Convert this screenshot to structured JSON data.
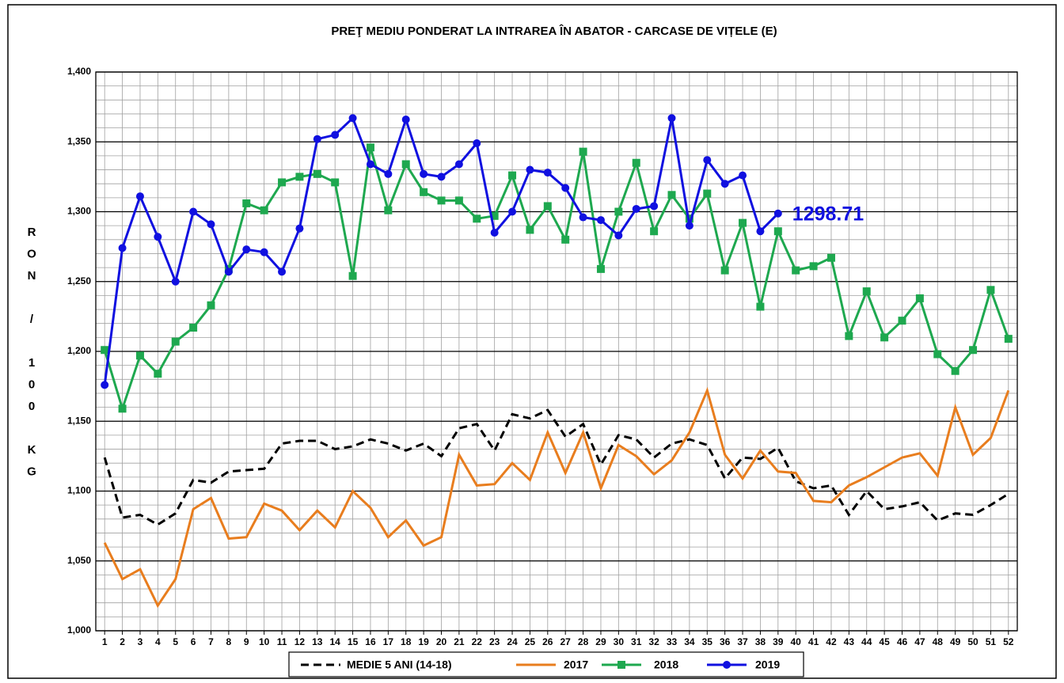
{
  "chart_data": {
    "type": "line",
    "title": "PREŢ MEDIU PONDERAT LA INTRAREA ÎN ABATOR - CARCASE DE VIȚELE (E)",
    "ylabel": "RON / 100 KG",
    "categories": [
      1,
      2,
      3,
      4,
      5,
      6,
      7,
      8,
      9,
      10,
      11,
      12,
      13,
      14,
      15,
      16,
      17,
      18,
      19,
      20,
      21,
      22,
      23,
      24,
      25,
      26,
      27,
      28,
      29,
      30,
      31,
      32,
      33,
      34,
      35,
      36,
      37,
      38,
      39,
      40,
      41,
      42,
      43,
      44,
      45,
      46,
      47,
      48,
      49,
      50,
      51,
      52
    ],
    "ylim": [
      1000,
      1400
    ],
    "yticks": [
      {
        "value": 1000,
        "label": "1,000"
      },
      {
        "value": 1050,
        "label": "1,050"
      },
      {
        "value": 1100,
        "label": "1,100"
      },
      {
        "value": 1150,
        "label": "1,150"
      },
      {
        "value": 1200,
        "label": "1,200"
      },
      {
        "value": 1250,
        "label": "1,250"
      },
      {
        "value": 1300,
        "label": "1,300"
      },
      {
        "value": 1350,
        "label": "1,350"
      },
      {
        "value": 1400,
        "label": "1,400"
      }
    ],
    "y_minor_step": 10,
    "grid": true,
    "legend": "bottom",
    "series": [
      {
        "name": "MEDIE 5 ANI (14-18)",
        "color": "#000000",
        "line_style": "dashed",
        "marker": null,
        "values": [
          1124,
          1081,
          1083,
          1076,
          1084,
          1108,
          1106,
          1114,
          1115,
          1116,
          1134,
          1136,
          1136,
          1130,
          1132,
          1137,
          1134,
          1129,
          1134,
          1125,
          1145,
          1148,
          1129,
          1155,
          1152,
          1158,
          1139,
          1148,
          1119,
          1140,
          1137,
          1124,
          1134,
          1137,
          1133,
          1109,
          1124,
          1123,
          1131,
          1107,
          1102,
          1104,
          1083,
          1100,
          1087,
          1089,
          1092,
          1079,
          1084,
          1083,
          1090,
          1098
        ]
      },
      {
        "name": "2017",
        "color": "#e87d1e",
        "line_style": "solid",
        "marker": null,
        "values": [
          1063,
          1037,
          1044,
          1018,
          1037,
          1087,
          1095,
          1066,
          1067,
          1091,
          1086,
          1072,
          1086,
          1074,
          1100,
          1088,
          1067,
          1079,
          1061,
          1067,
          1126,
          1104,
          1105,
          1120,
          1108,
          1142,
          1113,
          1142,
          1102,
          1133,
          1125,
          1112,
          1122,
          1142,
          1172,
          1126,
          1109,
          1129,
          1114,
          1113,
          1093,
          1092,
          1104,
          1110,
          1117,
          1124,
          1127,
          1111,
          1160,
          1126,
          1138,
          1172
        ]
      },
      {
        "name": "2018",
        "color": "#1ea84f",
        "line_style": "solid",
        "marker": "square",
        "values": [
          1201,
          1159,
          1197,
          1184,
          1207,
          1217,
          1233,
          1259,
          1306,
          1301,
          1321,
          1325,
          1327,
          1321,
          1254,
          1346,
          1301,
          1334,
          1314,
          1308,
          1308,
          1295,
          1297,
          1326,
          1287,
          1304,
          1280,
          1343,
          1259,
          1300,
          1335,
          1286,
          1312,
          1295,
          1313,
          1258,
          1292,
          1232,
          1286,
          1258,
          1261,
          1267,
          1211,
          1243,
          1210,
          1222,
          1238,
          1198,
          1186,
          1201,
          1244,
          1209
        ]
      },
      {
        "name": "2019",
        "color": "#1010e0",
        "line_style": "solid",
        "marker": "circle",
        "values": [
          1176,
          1274,
          1311,
          1282,
          1250,
          1300,
          1291,
          1257,
          1273,
          1271,
          1257,
          1288,
          1352,
          1355,
          1367,
          1334,
          1327,
          1366,
          1327,
          1325,
          1334,
          1349,
          1285,
          1300,
          1330,
          1328,
          1317,
          1296,
          1294,
          1283,
          1302,
          1304,
          1367,
          1290,
          1337,
          1320,
          1326,
          1286,
          1298.71,
          null,
          null,
          null,
          null,
          null,
          null,
          null,
          null,
          null,
          null,
          null,
          null,
          null
        ]
      }
    ],
    "annotation": {
      "text": "1298.71",
      "series": 3,
      "index": 38,
      "color": "#1010e0"
    }
  }
}
